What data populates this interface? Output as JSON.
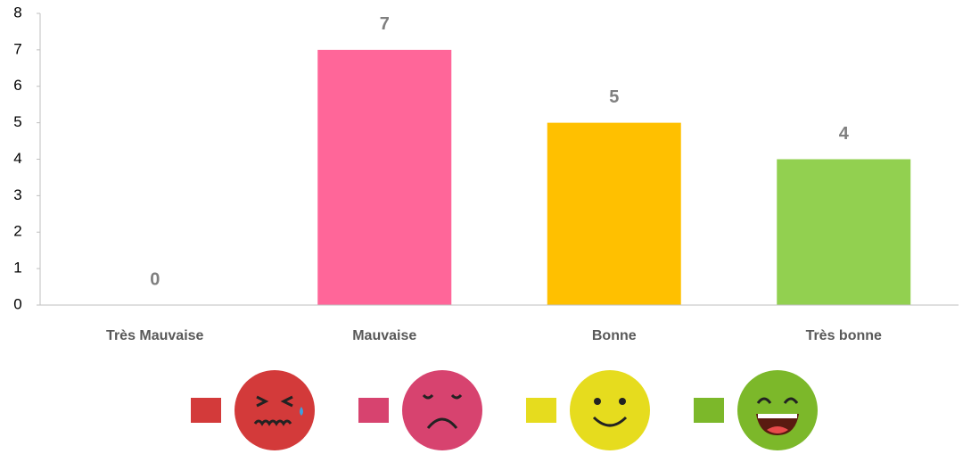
{
  "chart_data": {
    "type": "bar",
    "categories": [
      "Très Mauvaise",
      "Mauvaise",
      "Bonne",
      "Très bonne"
    ],
    "values": [
      0,
      7,
      5,
      4
    ],
    "colors": [
      "#d83b3b",
      "#ff6699",
      "#ffc000",
      "#92d050"
    ],
    "legend_colors": [
      "#d33a3a",
      "#d7436f",
      "#e6dc1e",
      "#7cb82a"
    ],
    "ylim": [
      0,
      8
    ],
    "yticks": [
      0,
      1,
      2,
      3,
      4,
      5,
      6,
      7,
      8
    ],
    "grid": false
  }
}
